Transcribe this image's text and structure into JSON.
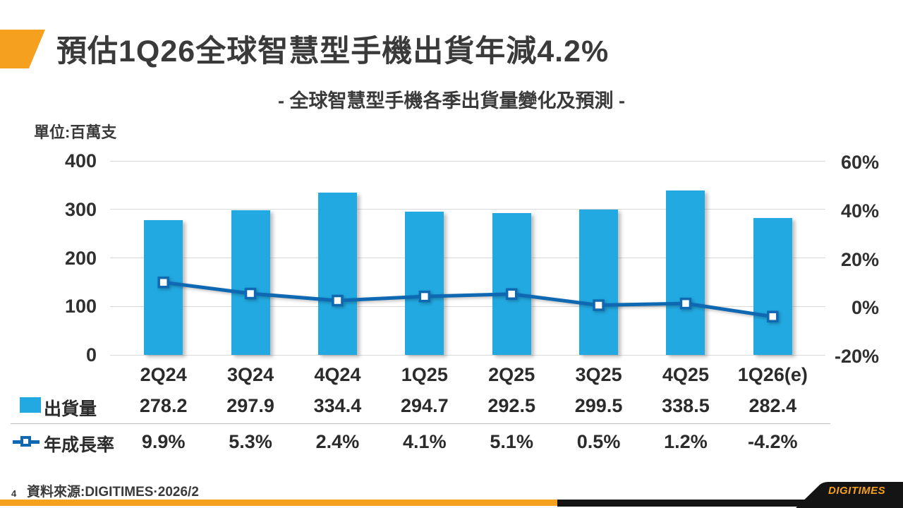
{
  "header": {
    "title": "預估1Q26全球智慧型手機出貨年減4.2%"
  },
  "chart": {
    "subtitle": "- 全球智慧型手機各季出貨量變化及預測 -",
    "unit_label": "單位:百萬支"
  },
  "chart_data": {
    "type": "bar",
    "combo": "bar + line, dual axis",
    "title": "全球智慧型手機各季出貨量變化及預測",
    "categories": [
      "2Q24",
      "3Q24",
      "4Q24",
      "1Q25",
      "2Q25",
      "3Q25",
      "4Q25",
      "1Q26(e)"
    ],
    "series": [
      {
        "name": "出貨量",
        "type": "bar",
        "axis": "left",
        "color": "#22A9E1",
        "values": [
          278.2,
          297.9,
          334.4,
          294.7,
          292.5,
          299.5,
          338.5,
          282.4
        ],
        "labels": [
          "278.2",
          "297.9",
          "334.4",
          "294.7",
          "292.5",
          "299.5",
          "338.5",
          "282.4"
        ]
      },
      {
        "name": "年成長率",
        "type": "line",
        "axis": "right",
        "color": "#0F68B2",
        "values": [
          9.9,
          5.3,
          2.4,
          4.1,
          5.1,
          0.5,
          1.2,
          -4.2
        ],
        "labels": [
          "9.9%",
          "5.3%",
          "2.4%",
          "4.1%",
          "5.1%",
          "0.5%",
          "1.2%",
          "-4.2%"
        ]
      }
    ],
    "left_axis": {
      "unit": "百萬支",
      "ticks": [
        0,
        100,
        200,
        300,
        400
      ],
      "range": [
        0,
        400
      ]
    },
    "right_axis": {
      "tick_labels": [
        "-20%",
        "0%",
        "20%",
        "40%",
        "60%"
      ],
      "ticks": [
        -20,
        0,
        20,
        40,
        60
      ],
      "range": [
        -20,
        60
      ]
    },
    "grid": true,
    "legend_position": "table rows bottom-left"
  },
  "footer": {
    "page_number": "4",
    "source": "資料來源:DIGITIMES·2026/2",
    "logo_text": "DIGITIMES"
  },
  "colors": {
    "accent_orange": "#F5A01E",
    "bar_blue": "#22A9E1",
    "line_blue": "#0F68B2",
    "gridline": "#D9D9D9",
    "text": "#3A3A3A"
  }
}
